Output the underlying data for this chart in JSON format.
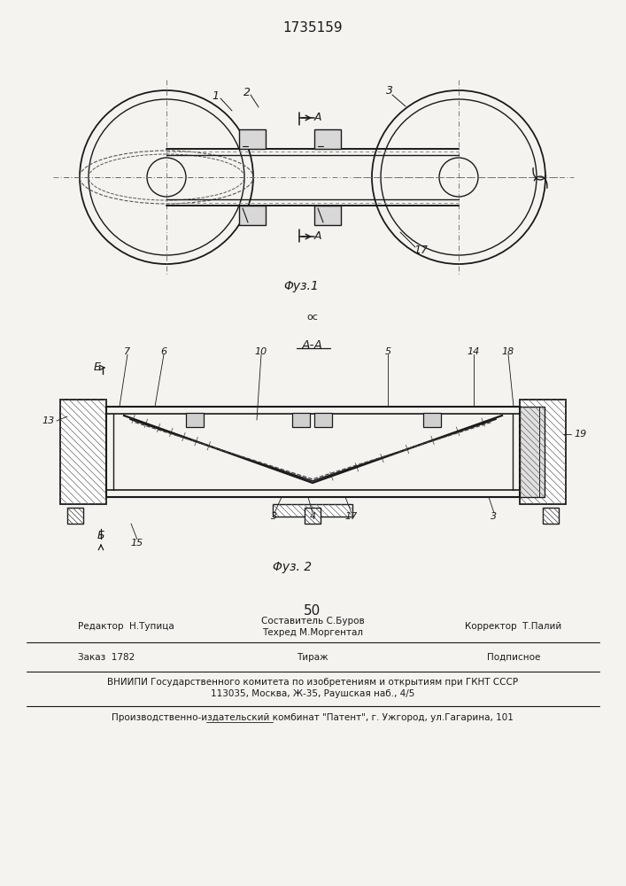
{
  "patent_number": "1735159",
  "fig1_caption": "Φуз.1",
  "fig2_caption": "Φуз. 2",
  "editor_line": "Редактор  Н.Тупица",
  "composer_line": "Составитель С.Буров",
  "techred_line": "Техред М.Моргентал",
  "corrector_line": "Корректор  Т.Палий",
  "order_line": "Заказ  1782",
  "tirazh_line": "Тираж",
  "podpisnoe_line": "Подписное",
  "vniiipi_line1": "ВНИИПИ Государственного комитета по изобретениям и открытиям при ГКНТ СССР",
  "vniiipi_line2": "113035, Москва, Ж-35, Раушская наб., 4/5",
  "production_line": "Производственно-издательский комбинат \"Патент\", г. Ужгород, ул.Гагарина, 101",
  "bg_color": "#f5f3f0",
  "line_color": "#1a1a1a"
}
